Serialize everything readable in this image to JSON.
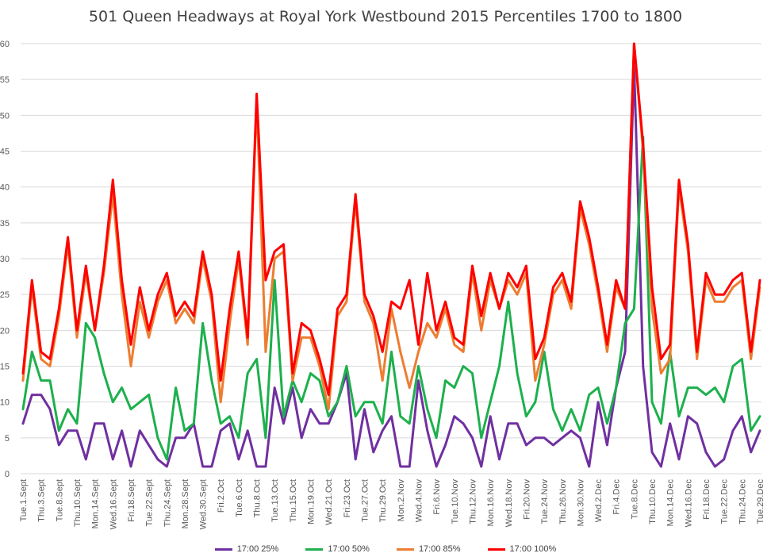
{
  "chart_data": {
    "type": "line",
    "title": "501 Queen Headways at Royal York Westbound 2015 Percentiles 1700 to 1800",
    "xlabel": "",
    "ylabel": "",
    "ylim": [
      0,
      60
    ],
    "yticks": [
      0,
      5,
      10,
      15,
      20,
      25,
      30,
      35,
      40,
      45,
      50,
      55,
      60
    ],
    "grid": "horizontal",
    "legend_position": "bottom",
    "xtick_labels": [
      "Tue.1.Sept",
      "Thu.3.Sept",
      "Tue.8.Sept",
      "Thu.10.Sept",
      "Mon.14.Sept",
      "Wed.16.Sept",
      "Fri.18.Sept",
      "Tue.22.Sept",
      "Thu.24.Sept",
      "Mon.28.Sept",
      "Wed.30.Sept",
      "Fri.2.Oct",
      "Tue.6.Oct",
      "Thu.8.Oct",
      "Tue.13.Oct",
      "Thu.15.Oct",
      "Mon.19.Oct",
      "Wed.21.Oct",
      "Fri.23.Oct",
      "Tue.27.Oct",
      "Thu.29.Oct",
      "Mon.2.Nov",
      "Wed.4.Nov",
      "Fri.6.Nov",
      "Tue.10.Nov",
      "Thu.12.Nov",
      "Mon.16.Nov",
      "Wed.18.Nov",
      "Fri.20.Nov",
      "Tue.24.Nov",
      "Thu.26.Nov",
      "Mon.30.Nov",
      "Wed.2.Dec",
      "Fri.4.Dec",
      "Tue.8.Dec",
      "Thu.10.Dec",
      "Mon.14.Dec",
      "Wed.16.Dec",
      "Fri.18.Dec",
      "Tue.22.Dec",
      "Thu.24.Dec",
      "Tue.29.Dec"
    ],
    "series": [
      {
        "name": "17:00 25%",
        "color": "#7030A0",
        "values": [
          7,
          11,
          11,
          9,
          4,
          6,
          6,
          2,
          7,
          7,
          2,
          6,
          1,
          6,
          4,
          2,
          1,
          5,
          5,
          7,
          1,
          1,
          6,
          7,
          2,
          6,
          1,
          1,
          12,
          7,
          12,
          5,
          9,
          7,
          7,
          10,
          14,
          2,
          9,
          3,
          6,
          8,
          1,
          1,
          13,
          6,
          1,
          4,
          8,
          7,
          5,
          1,
          8,
          2,
          7,
          7,
          4,
          5,
          5,
          4,
          5,
          6,
          5,
          1,
          10,
          4,
          12,
          17,
          57,
          15,
          3,
          1,
          7,
          2,
          8,
          7,
          3,
          1,
          2,
          6,
          8,
          3,
          6
        ]
      },
      {
        "name": "17:00 50%",
        "color": "#1DB04D",
        "values": [
          9,
          17,
          13,
          13,
          6,
          9,
          7,
          21,
          19,
          14,
          10,
          12,
          9,
          10,
          11,
          5,
          2,
          12,
          6,
          7,
          21,
          13,
          7,
          8,
          5,
          14,
          16,
          5,
          27,
          8,
          13,
          10,
          14,
          13,
          8,
          10,
          15,
          8,
          10,
          10,
          7,
          17,
          8,
          7,
          15,
          9,
          5,
          13,
          12,
          15,
          14,
          5,
          10,
          15,
          24,
          14,
          8,
          10,
          17,
          9,
          6,
          9,
          6,
          11,
          12,
          7,
          12,
          21,
          23,
          47,
          10,
          7,
          17,
          8,
          12,
          12,
          11,
          12,
          10,
          15,
          16,
          6,
          8
        ]
      },
      {
        "name": "17:00 85%",
        "color": "#ED7D31",
        "values": [
          13,
          26,
          16,
          15,
          22,
          32,
          19,
          28,
          20,
          28,
          39,
          25,
          15,
          24,
          19,
          24,
          27,
          21,
          23,
          21,
          30,
          24,
          10,
          21,
          30,
          18,
          52,
          17,
          30,
          31,
          13,
          19,
          19,
          15,
          9,
          22,
          24,
          38,
          24,
          21,
          13,
          23,
          17,
          12,
          17,
          21,
          19,
          23,
          18,
          17,
          28,
          20,
          27,
          23,
          27,
          25,
          28,
          13,
          18,
          25,
          27,
          23,
          37,
          32,
          25,
          17,
          26,
          23,
          60,
          45,
          23,
          14,
          16,
          40,
          31,
          16,
          27,
          24,
          24,
          26,
          27,
          16,
          26
        ]
      },
      {
        "name": "17:00 100%",
        "color": "#FF0000",
        "values": [
          14,
          27,
          17,
          16,
          23,
          33,
          20,
          29,
          20,
          29,
          41,
          27,
          18,
          26,
          20,
          25,
          28,
          22,
          24,
          22,
          31,
          25,
          13,
          23,
          31,
          19,
          53,
          27,
          31,
          32,
          14,
          21,
          20,
          16,
          11,
          23,
          25,
          39,
          25,
          22,
          17,
          24,
          23,
          27,
          18,
          28,
          20,
          24,
          19,
          18,
          29,
          22,
          28,
          23,
          28,
          26,
          29,
          16,
          19,
          26,
          28,
          24,
          38,
          33,
          26,
          18,
          27,
          23,
          60,
          46,
          26,
          16,
          18,
          41,
          32,
          17,
          28,
          25,
          25,
          27,
          28,
          17,
          27
        ]
      }
    ]
  }
}
